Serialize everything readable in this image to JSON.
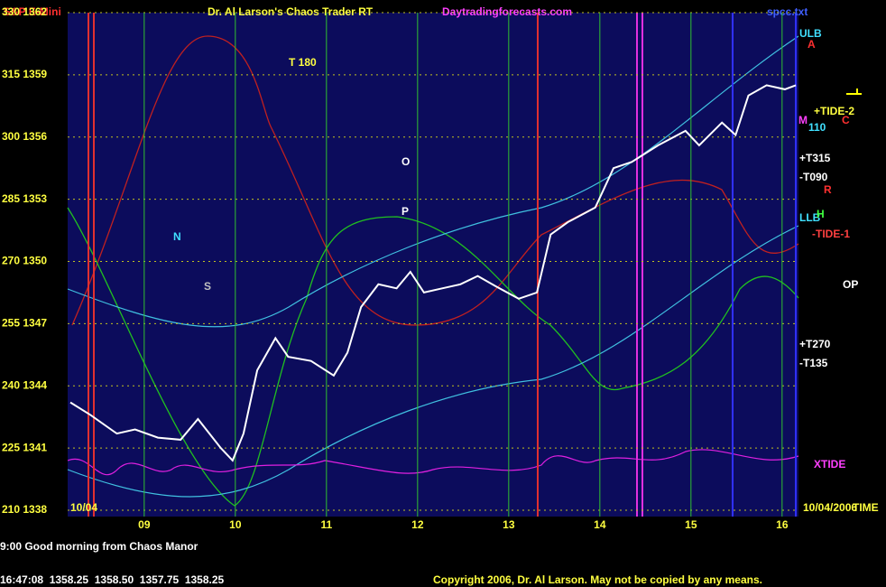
{
  "chart_data": {
    "type": "line",
    "title": "Dr. Al Larson's Chaos Trader RT",
    "symbol": "S&P E-Mini",
    "website": "Daytradingforecasts.com",
    "file": "spcc.txt",
    "date_left": "10/04",
    "date_right": "10/04/2006",
    "time_label": "TIME",
    "message": "9:00 Good morning from Chaos Manor",
    "quote": "16:47:08  1358.25  1358.50  1357.75  1358.25",
    "copyright": "Copyright 2006, Dr. Al Larson. May not be copied by any means.",
    "annotations": [
      "ULB",
      "+TIDE-2",
      "110",
      "+T315",
      "-T090",
      "LLB",
      "-TIDE-1",
      "+T270",
      "-T135",
      "XTIDE",
      "T 180",
      "O",
      "P",
      "OP",
      "N",
      "S",
      "A",
      "M",
      "C",
      "R",
      "H"
    ],
    "xlim": [
      8.16,
      16.18
    ],
    "xticks": [
      {
        "value": 9,
        "label": "09"
      },
      10,
      11,
      12,
      13,
      14,
      15,
      16
    ],
    "ylim": [
      1338,
      1362
    ],
    "yticks": [
      {
        "value": 1338,
        "label": "210 1338"
      },
      {
        "value": 1341,
        "label": "225 1341"
      },
      {
        "value": 1344,
        "label": "240 1344"
      },
      {
        "value": 1347,
        "label": "255 1347"
      },
      {
        "value": 1350,
        "label": "270 1350"
      },
      {
        "value": 1353,
        "label": "285 1353"
      },
      {
        "value": 1356,
        "label": "300 1356"
      },
      {
        "value": 1359,
        "label": "315 1359"
      },
      {
        "value": 1362,
        "label": "330 1362"
      }
    ],
    "grid": true,
    "series": [
      {
        "name": "S&P E-Mini",
        "color": "#ffffff",
        "x": [
          8.19,
          8.41,
          8.7,
          8.9,
          9.15,
          9.4,
          9.59,
          9.84,
          9.97,
          10.09,
          10.24,
          10.44,
          10.58,
          10.83,
          11.08,
          11.23,
          11.38,
          11.57,
          11.77,
          11.92,
          12.07,
          12.27,
          12.47,
          12.66,
          12.86,
          13.11,
          13.31,
          13.46,
          13.65,
          13.95,
          14.15,
          14.35,
          14.64,
          14.94,
          15.09,
          15.34,
          15.49,
          15.63,
          15.83,
          16.03,
          16.15
        ],
        "values": [
          1343.2,
          1342.6,
          1341.7,
          1341.9,
          1341.5,
          1341.4,
          1342.4,
          1341.0,
          1340.4,
          1341.7,
          1344.75,
          1346.3,
          1345.4,
          1345.2,
          1344.5,
          1345.6,
          1347.8,
          1348.9,
          1348.7,
          1349.5,
          1348.5,
          1348.7,
          1348.9,
          1349.3,
          1348.8,
          1348.2,
          1348.5,
          1351.3,
          1351.9,
          1352.6,
          1354.5,
          1354.8,
          1355.6,
          1356.3,
          1355.6,
          1356.7,
          1356.1,
          1358.0,
          1358.5,
          1358.3,
          1358.5
        ]
      }
    ]
  }
}
